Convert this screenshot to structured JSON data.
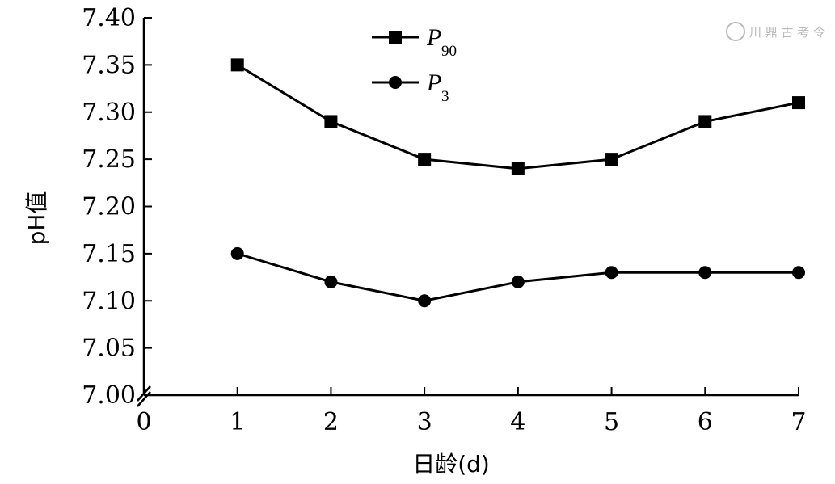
{
  "chart_data": {
    "type": "line",
    "xlabel": "日龄(d)",
    "ylabel": "pH值",
    "xlim": [
      0,
      7
    ],
    "ylim": [
      7.0,
      7.4
    ],
    "x_ticks": [
      "0",
      "1",
      "2",
      "3",
      "4",
      "5",
      "6",
      "7"
    ],
    "y_ticks": [
      "7.00",
      "7.05",
      "7.10",
      "7.15",
      "7.20",
      "7.25",
      "7.30",
      "7.35",
      "7.40"
    ],
    "x": [
      1,
      2,
      3,
      4,
      5,
      6,
      7
    ],
    "series": [
      {
        "name": "P",
        "subscript": "90",
        "marker": "square",
        "values": [
          7.35,
          7.29,
          7.25,
          7.24,
          7.25,
          7.29,
          7.31
        ]
      },
      {
        "name": "P",
        "subscript": "3",
        "marker": "circle",
        "values": [
          7.15,
          7.12,
          7.1,
          7.12,
          7.13,
          7.13,
          7.13
        ]
      }
    ],
    "legend_position": "top-center",
    "grid": false,
    "axis_break": "y"
  },
  "watermark": {
    "text": "川 鼎 古 考 令"
  }
}
